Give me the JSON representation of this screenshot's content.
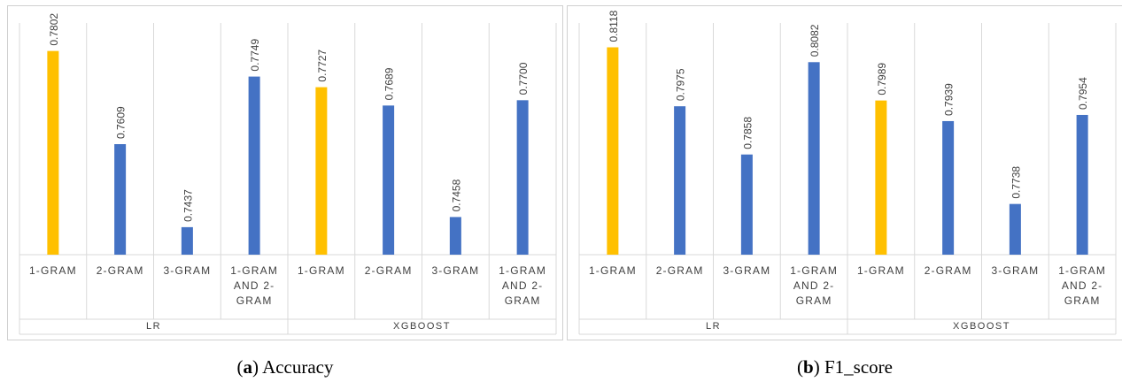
{
  "colors": {
    "highlight": "#FFC000",
    "normal": "#4472C4",
    "grid": "#D9D9D9",
    "border": "#D0D0D0",
    "text": "#404040"
  },
  "chart_data": [
    {
      "type": "bar",
      "caption_letter": "a",
      "caption_text": "Accuracy",
      "groups": [
        "LR",
        "XGBOOST"
      ],
      "categories": [
        [
          "1-GRAM"
        ],
        [
          "2-GRAM"
        ],
        [
          "3-GRAM"
        ],
        [
          "1-GRAM",
          "AND 2-",
          "GRAM"
        ],
        [
          "1-GRAM"
        ],
        [
          "2-GRAM"
        ],
        [
          "3-GRAM"
        ],
        [
          "1-GRAM",
          "AND 2-",
          "GRAM"
        ]
      ],
      "values": [
        0.7802,
        0.7609,
        0.7437,
        0.7749,
        0.7727,
        0.7689,
        0.7458,
        0.77
      ],
      "labels": [
        "0.7802",
        "0.7609",
        "0.7437",
        "0.7749",
        "0.7727",
        "0.7689",
        "0.7458",
        "0.7700"
      ],
      "highlight": [
        true,
        false,
        false,
        false,
        true,
        false,
        false,
        false
      ],
      "ylim": [
        0.738,
        0.786
      ]
    },
    {
      "type": "bar",
      "caption_letter": "b",
      "caption_text": "F1_score",
      "groups": [
        "LR",
        "XGBOOST"
      ],
      "categories": [
        [
          "1-GRAM"
        ],
        [
          "2-GRAM"
        ],
        [
          "3-GRAM"
        ],
        [
          "1-GRAM",
          "AND 2-",
          "GRAM"
        ],
        [
          "1-GRAM"
        ],
        [
          "2-GRAM"
        ],
        [
          "3-GRAM"
        ],
        [
          "1-GRAM",
          "AND 2-",
          "GRAM"
        ]
      ],
      "values": [
        0.8118,
        0.7975,
        0.7858,
        0.8082,
        0.7989,
        0.7939,
        0.7738,
        0.7954
      ],
      "labels": [
        "0.8118",
        "0.7975",
        "0.7858",
        "0.8082",
        "0.7989",
        "0.7939",
        "0.7738",
        "0.7954"
      ],
      "highlight": [
        true,
        false,
        false,
        false,
        true,
        false,
        false,
        false
      ],
      "ylim": [
        0.7615,
        0.8177
      ]
    }
  ]
}
